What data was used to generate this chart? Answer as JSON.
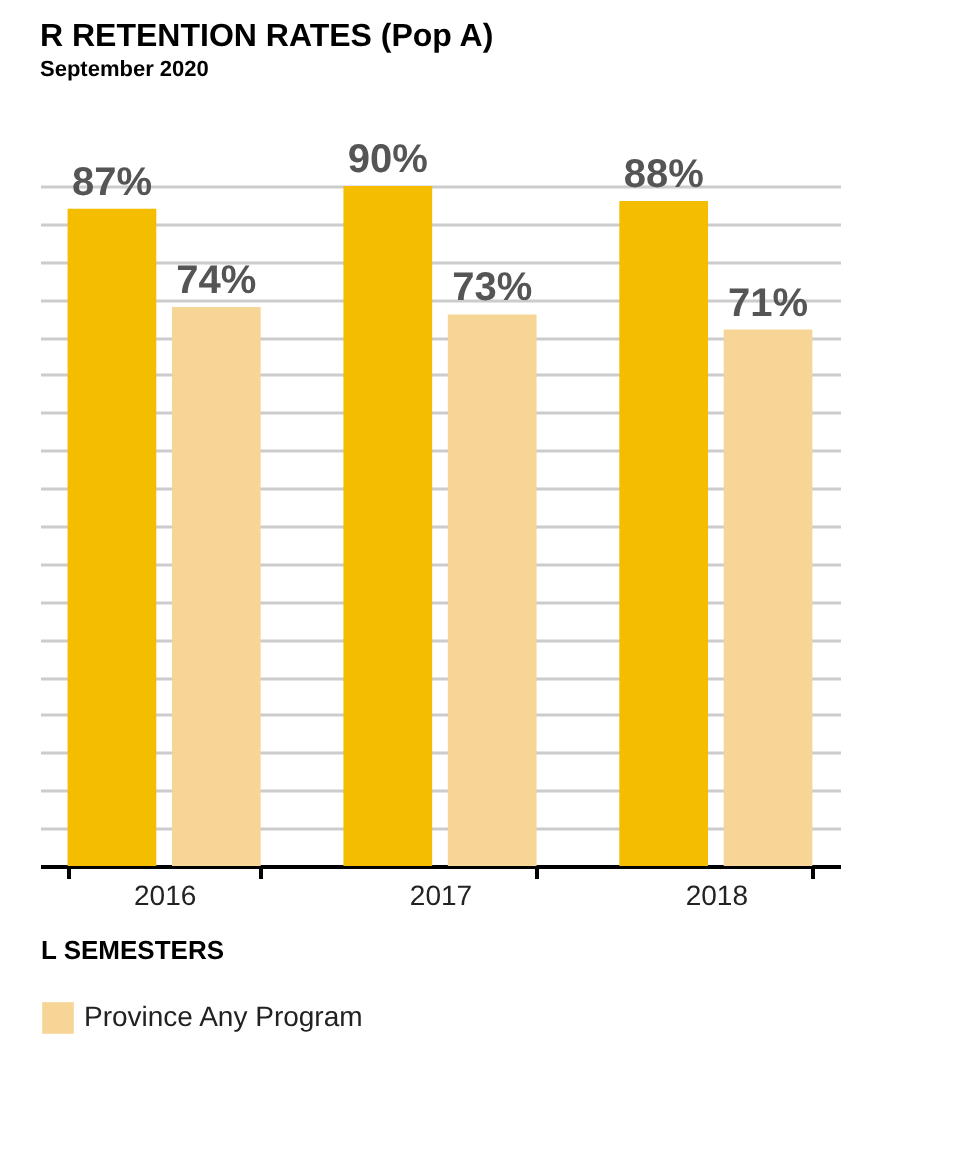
{
  "chart_data": {
    "type": "bar",
    "title": "R RETENTION RATES (Pop A)",
    "subtitle": "September 2020",
    "xlabel": "L SEMESTERS",
    "categories": [
      "2016",
      "2017",
      "2018"
    ],
    "series": [
      {
        "color": "#f5bd00",
        "values": [
          87,
          90,
          88
        ],
        "value_labels": [
          "87%",
          "90%",
          "88%"
        ]
      },
      {
        "name": "Province Any Program",
        "color": "#f7d597",
        "values": [
          74,
          73,
          71
        ],
        "value_labels": [
          "74%",
          "73%",
          "71%"
        ]
      }
    ],
    "tick_labels": "x",
    "grid": "y",
    "legend": "bottom"
  }
}
